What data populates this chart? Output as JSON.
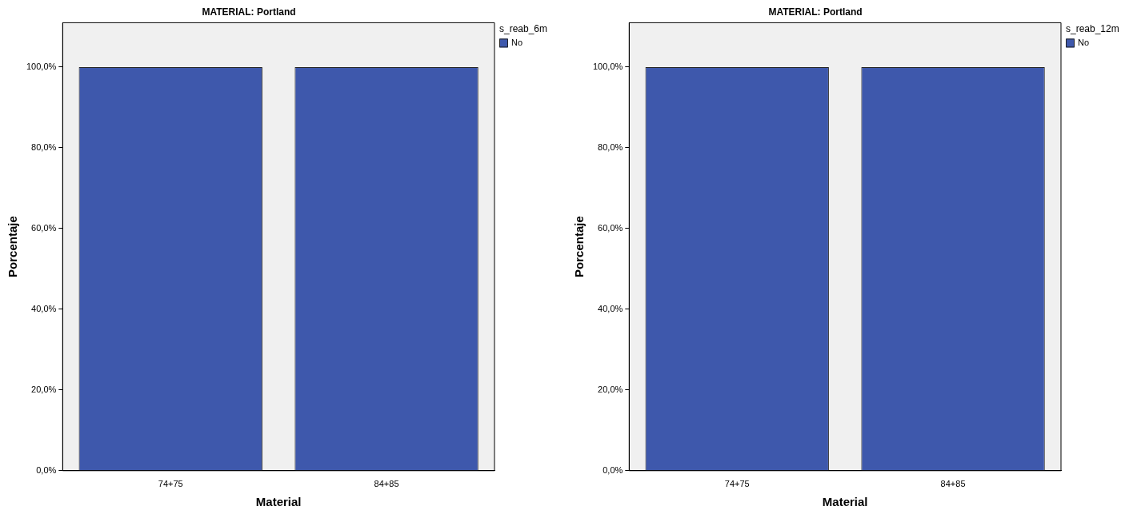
{
  "chart_data": [
    {
      "type": "bar",
      "title": "MATERIAL: Portland",
      "xlabel": "Material",
      "ylabel": "Porcentaje",
      "legend_title": "s_reab_6m",
      "legend": "top right",
      "grid": false,
      "categories": [
        "74+75",
        "84+85"
      ],
      "series": [
        {
          "name": "No",
          "color": "#3e58ac",
          "values": [
            100,
            100
          ]
        }
      ],
      "ylim": [
        0,
        111
      ],
      "yticks": [
        {
          "value": 0,
          "label": "0,0%"
        },
        {
          "value": 20,
          "label": "20,0%"
        },
        {
          "value": 40,
          "label": "40,0%"
        },
        {
          "value": 60,
          "label": "60,0%"
        },
        {
          "value": 80,
          "label": "80,0%"
        },
        {
          "value": 100,
          "label": "100,0%"
        }
      ]
    },
    {
      "type": "bar",
      "title": "MATERIAL: Portland",
      "xlabel": "Material",
      "ylabel": "Porcentaje",
      "legend_title": "s_reab_12m",
      "legend": "top right",
      "grid": false,
      "categories": [
        "74+75",
        "84+85"
      ],
      "series": [
        {
          "name": "No",
          "color": "#3e58ac",
          "values": [
            100,
            100
          ]
        }
      ],
      "ylim": [
        0,
        111
      ],
      "yticks": [
        {
          "value": 0,
          "label": "0,0%"
        },
        {
          "value": 20,
          "label": "20,0%"
        },
        {
          "value": 40,
          "label": "40,0%"
        },
        {
          "value": 60,
          "label": "60,0%"
        },
        {
          "value": 80,
          "label": "80,0%"
        },
        {
          "value": 100,
          "label": "100,0%"
        }
      ]
    }
  ]
}
